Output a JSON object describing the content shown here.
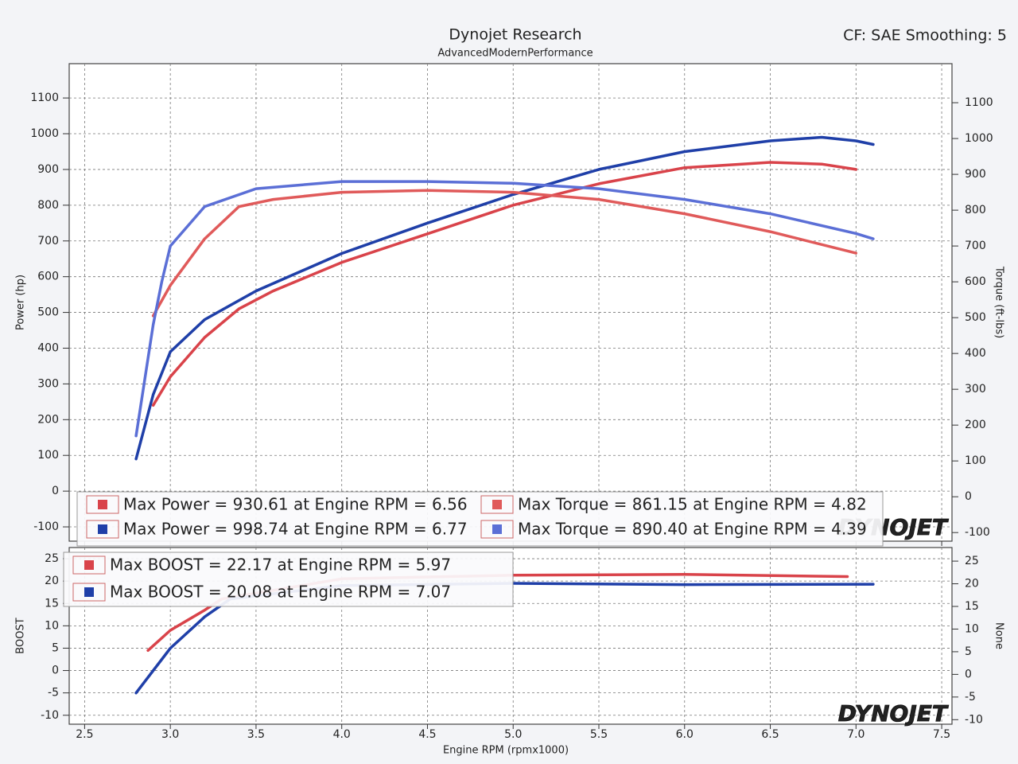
{
  "chart_data": [
    {
      "type": "line",
      "title": "Dynojet Research",
      "subtitle": "AdvancedModernPerformance",
      "note": "CF: SAE Smoothing: 5",
      "logo": "DYNOJET",
      "y_label": "Power (hp)",
      "y2_label": "Torque (ft-lbs)",
      "xlim": [
        2.41,
        7.56
      ],
      "xticks": [
        2.5,
        {
          "value": 3,
          "label": "3.0"
        },
        3.5,
        {
          "value": 4,
          "label": "4.0"
        },
        4.5,
        {
          "value": 5,
          "label": "5.0"
        },
        5.5,
        {
          "value": 6,
          "label": "6.0"
        },
        6.5,
        {
          "value": 7,
          "label": "7.0"
        },
        7.5
      ],
      "ylim": [
        -140,
        1196
      ],
      "yticks": [
        -100,
        0,
        100,
        200,
        300,
        400,
        500,
        600,
        700,
        800,
        900,
        1000,
        1100
      ],
      "y2lim": [
        -124,
        1209
      ],
      "y2ticks": [
        -100,
        0,
        100,
        200,
        300,
        400,
        500,
        600,
        700,
        800,
        900,
        1000,
        1100
      ],
      "grid": true,
      "series": [
        {
          "name": "Max Power = 930.61 at Engine RPM = 6.56",
          "color": "#d9434a",
          "x": [
            2.9,
            3.0,
            3.2,
            3.4,
            3.6,
            4.0,
            4.5,
            5.0,
            5.5,
            6.0,
            6.5,
            6.8,
            7.0
          ],
          "values": [
            240,
            320,
            430,
            510,
            560,
            640,
            720,
            800,
            860,
            905,
            920,
            915,
            900
          ]
        },
        {
          "name": "Max Power = 998.74 at Engine RPM = 6.77",
          "color": "#1f3fa8",
          "x": [
            2.8,
            2.9,
            3.0,
            3.2,
            3.5,
            4.0,
            4.5,
            5.0,
            5.5,
            6.0,
            6.5,
            6.8,
            7.0,
            7.1
          ],
          "values": [
            90,
            270,
            390,
            480,
            560,
            665,
            750,
            830,
            900,
            950,
            980,
            990,
            980,
            970
          ]
        },
        {
          "name": "Max Torque = 861.15 at Engine RPM = 4.82",
          "color": "#e05a5a",
          "axis": "y2",
          "x": [
            2.9,
            3.0,
            3.2,
            3.4,
            3.6,
            4.0,
            4.5,
            5.0,
            5.5,
            6.0,
            6.5,
            7.0
          ],
          "values": [
            505,
            590,
            720,
            810,
            830,
            850,
            855,
            850,
            830,
            790,
            740,
            680
          ]
        },
        {
          "name": "Max Torque = 890.40 at Engine RPM = 4.39",
          "color": "#5b6fd6",
          "axis": "y2",
          "x": [
            2.8,
            2.9,
            2.95,
            3.0,
            3.2,
            3.5,
            4.0,
            4.5,
            5.0,
            5.5,
            6.0,
            6.5,
            7.0,
            7.1
          ],
          "values": [
            170,
            480,
            600,
            700,
            810,
            860,
            880,
            880,
            875,
            860,
            830,
            790,
            735,
            720
          ]
        }
      ]
    },
    {
      "type": "line",
      "logo": "DYNOJET",
      "x_label": "Engine RPM (rpmx1000)",
      "y_label": "BOOST",
      "y2_label": "None",
      "xlim": [
        2.41,
        7.56
      ],
      "xticks": [
        2.5,
        {
          "value": 3,
          "label": "3.0"
        },
        3.5,
        {
          "value": 4,
          "label": "4.0"
        },
        4.5,
        {
          "value": 5,
          "label": "5.0"
        },
        5.5,
        {
          "value": 6,
          "label": "6.0"
        },
        6.5,
        {
          "value": 7,
          "label": "7.0"
        },
        7.5
      ],
      "ylim": [
        -12,
        27.5
      ],
      "yticks": [
        -10,
        -5,
        0,
        5,
        10,
        15,
        20,
        25
      ],
      "y2lim": [
        -11,
        28
      ],
      "y2ticks": [
        -10,
        -5,
        0,
        5,
        10,
        15,
        20,
        25
      ],
      "grid": true,
      "series": [
        {
          "name": "Max BOOST = 22.17 at Engine RPM = 5.97",
          "color": "#d9434a",
          "x": [
            2.87,
            3.0,
            3.2,
            3.3,
            4.0,
            5.0,
            6.0,
            6.95
          ],
          "values": [
            4.5,
            9,
            13.5,
            16,
            20.5,
            21.3,
            21.5,
            21
          ]
        },
        {
          "name": "Max BOOST = 20.08 at Engine RPM = 7.07",
          "color": "#1f3fa8",
          "x": [
            2.8,
            3.0,
            3.2,
            3.35,
            4.0,
            5.0,
            6.0,
            7.1
          ],
          "values": [
            -5,
            5,
            12,
            16,
            19,
            19.5,
            19.2,
            19.3
          ]
        }
      ]
    }
  ]
}
